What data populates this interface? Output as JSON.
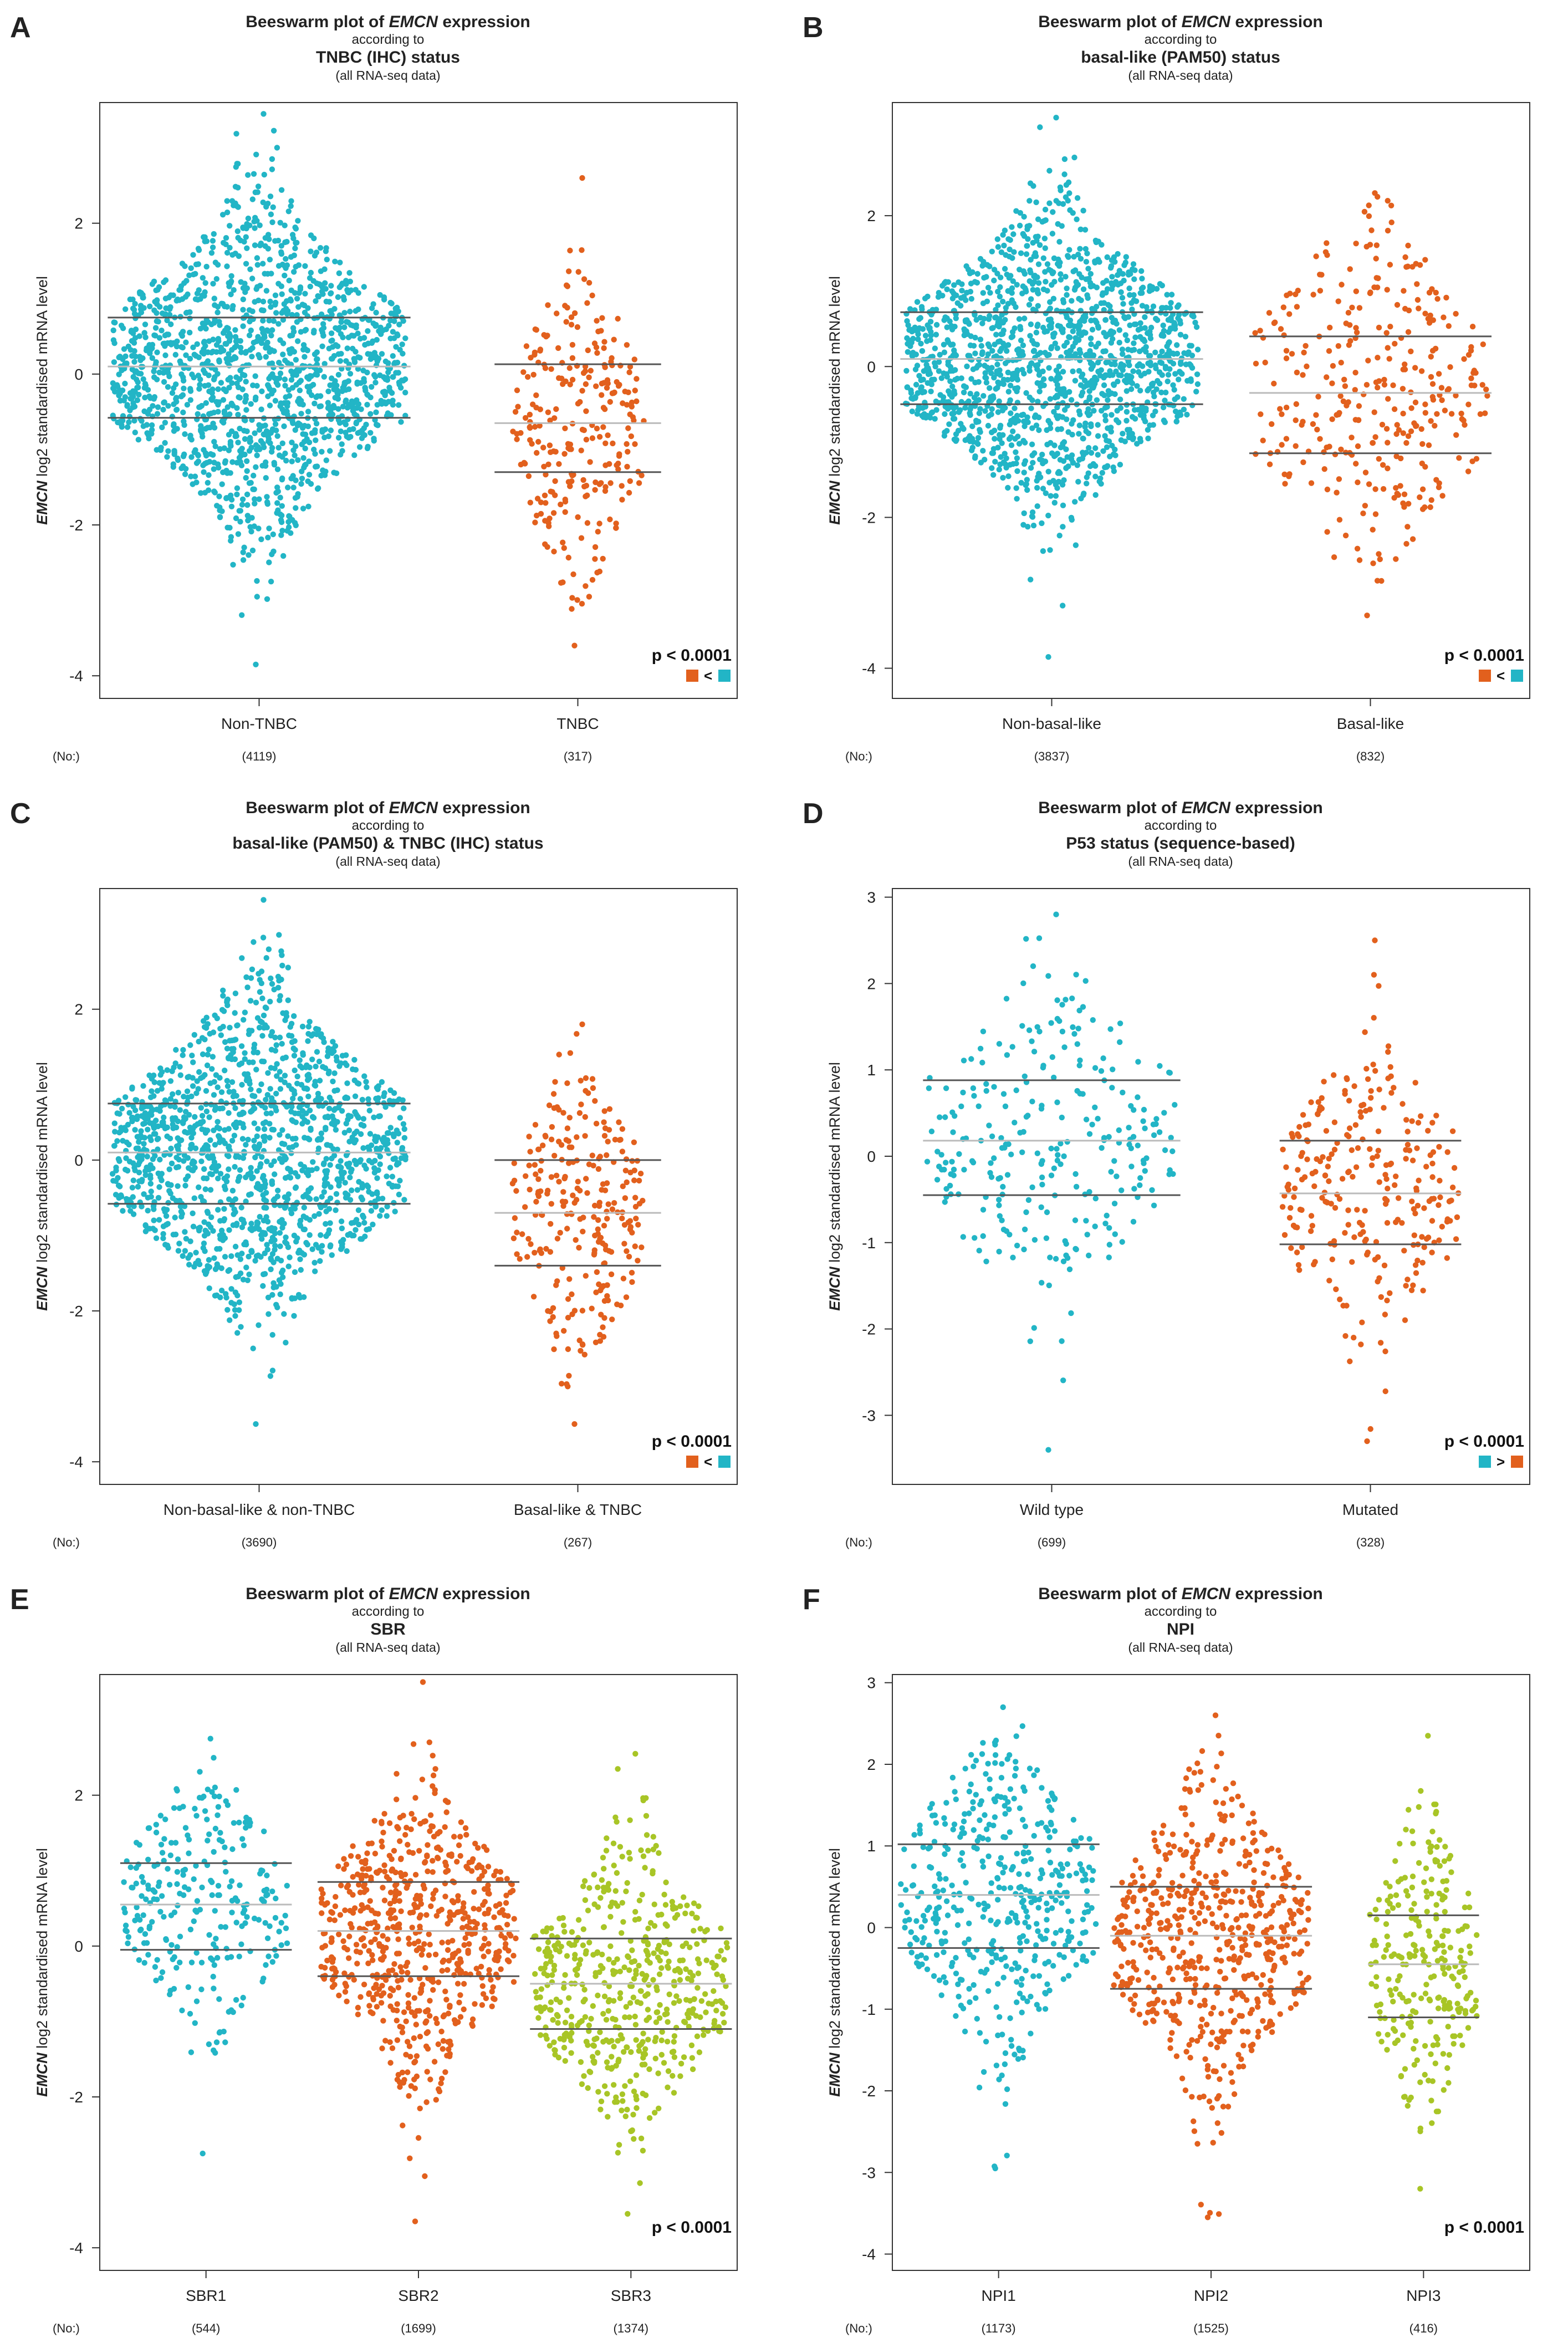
{
  "colors": {
    "cyan": "#22b5c6",
    "orange": "#e2601d",
    "green": "#a8c526",
    "line_dark": "#555555",
    "line_light": "#bbbbbb"
  },
  "no_label": "(No:)",
  "gene": "EMCN",
  "ylabel_rest": "log2 standardised mRNA level",
  "chart_data": [
    {
      "letter": "A",
      "type": "scatter",
      "subtype": "beeswarm",
      "title_pre": "Beeswarm plot of ",
      "title_gene": "EMCN",
      "title_post": " expression",
      "according": "according to",
      "variable": "TNBC (IHC) status",
      "dataset": "(all RNA-seq data)",
      "ylim": [
        -4.3,
        3.6
      ],
      "yticks": [
        -4,
        -2,
        0,
        2
      ],
      "groups": [
        {
          "name": "Non-TNBC",
          "n": "(4119)",
          "color": "cyan",
          "min": -3.85,
          "max": 3.45,
          "q1": -0.58,
          "median": 0.1,
          "q3": 0.75,
          "halfwidth": 1.0
        },
        {
          "name": "TNBC",
          "n": "(317)",
          "color": "orange",
          "min": -3.6,
          "max": 2.6,
          "q1": -1.3,
          "median": -0.65,
          "q3": 0.13,
          "halfwidth": 0.45
        }
      ],
      "pvalue": "p < 0.0001",
      "compare": [
        {
          "color": "orange"
        },
        {
          "text": "<"
        },
        {
          "color": "cyan"
        }
      ]
    },
    {
      "letter": "B",
      "type": "scatter",
      "subtype": "beeswarm",
      "title_pre": "Beeswarm plot of ",
      "title_gene": "EMCN",
      "title_post": " expression",
      "according": "according to",
      "variable": "basal-like (PAM50) status",
      "dataset": "(all RNA-seq data)",
      "ylim": [
        -4.4,
        3.5
      ],
      "yticks": [
        -4,
        -2,
        0,
        2
      ],
      "groups": [
        {
          "name": "Non-basal-like",
          "n": "(3837)",
          "color": "cyan",
          "min": -3.85,
          "max": 3.3,
          "q1": -0.5,
          "median": 0.1,
          "q3": 0.72,
          "halfwidth": 1.0
        },
        {
          "name": "Basal-like",
          "n": "(832)",
          "color": "orange",
          "min": -3.3,
          "max": 2.3,
          "q1": -1.15,
          "median": -0.35,
          "q3": 0.4,
          "halfwidth": 0.8
        }
      ],
      "pvalue": "p < 0.0001",
      "compare": [
        {
          "color": "orange"
        },
        {
          "text": "<"
        },
        {
          "color": "cyan"
        }
      ]
    },
    {
      "letter": "C",
      "type": "scatter",
      "subtype": "beeswarm",
      "title_pre": "Beeswarm plot of ",
      "title_gene": "EMCN",
      "title_post": " expression",
      "according": "according to",
      "variable": "basal-like (PAM50) & TNBC (IHC) status",
      "dataset": "(all RNA-seq data)",
      "ylim": [
        -4.3,
        3.6
      ],
      "yticks": [
        -4,
        -2,
        0,
        2
      ],
      "groups": [
        {
          "name": "Non-basal-like & non-TNBC",
          "n": "(3690)",
          "color": "cyan",
          "min": -3.5,
          "max": 3.45,
          "q1": -0.58,
          "median": 0.1,
          "q3": 0.75,
          "halfwidth": 1.0
        },
        {
          "name": "Basal-like & TNBC",
          "n": "(267)",
          "color": "orange",
          "min": -3.5,
          "max": 1.8,
          "q1": -1.4,
          "median": -0.7,
          "q3": 0.0,
          "halfwidth": 0.45
        }
      ],
      "pvalue": "p < 0.0001",
      "compare": [
        {
          "color": "orange"
        },
        {
          "text": "<"
        },
        {
          "color": "cyan"
        }
      ]
    },
    {
      "letter": "D",
      "type": "scatter",
      "subtype": "beeswarm",
      "title_pre": "Beeswarm plot of ",
      "title_gene": "EMCN",
      "title_post": " expression",
      "according": "according to",
      "variable": "P53 status (sequence-based)",
      "dataset": "(all RNA-seq data)",
      "ylim": [
        -3.8,
        3.1
      ],
      "yticks": [
        -3,
        -2,
        -1,
        0,
        1,
        2,
        3
      ],
      "groups": [
        {
          "name": "Wild type",
          "n": "(699)",
          "color": "cyan",
          "min": -3.4,
          "max": 2.8,
          "q1": -0.45,
          "median": 0.18,
          "q3": 0.88,
          "halfwidth": 0.85
        },
        {
          "name": "Mutated",
          "n": "(328)",
          "color": "orange",
          "min": -3.3,
          "max": 2.5,
          "q1": -1.02,
          "median": -0.43,
          "q3": 0.18,
          "halfwidth": 0.6
        }
      ],
      "pvalue": "p < 0.0001",
      "compare": [
        {
          "color": "cyan"
        },
        {
          "text": ">"
        },
        {
          "color": "orange"
        }
      ]
    },
    {
      "letter": "E",
      "type": "scatter",
      "subtype": "beeswarm",
      "title_pre": "Beeswarm plot of ",
      "title_gene": "EMCN",
      "title_post": " expression",
      "according": "according to",
      "variable": "SBR",
      "dataset": "(all RNA-seq data)",
      "ylim": [
        -4.3,
        3.6
      ],
      "yticks": [
        -4,
        -2,
        0,
        2
      ],
      "groups": [
        {
          "name": "SBR1",
          "n": "(544)",
          "color": "cyan",
          "min": -2.75,
          "max": 2.75,
          "q1": -0.05,
          "median": 0.55,
          "q3": 1.1,
          "halfwidth": 0.85
        },
        {
          "name": "SBR2",
          "n": "(1699)",
          "color": "orange",
          "min": -3.65,
          "max": 3.5,
          "q1": -0.4,
          "median": 0.2,
          "q3": 0.85,
          "halfwidth": 1.0
        },
        {
          "name": "SBR3",
          "n": "(1374)",
          "color": "green",
          "min": -3.55,
          "max": 2.55,
          "q1": -1.1,
          "median": -0.5,
          "q3": 0.1,
          "halfwidth": 1.0
        }
      ],
      "pvalue": "p < 0.0001",
      "compare": []
    },
    {
      "letter": "F",
      "type": "scatter",
      "subtype": "beeswarm",
      "title_pre": "Beeswarm plot of ",
      "title_gene": "EMCN",
      "title_post": " expression",
      "according": "according to",
      "variable": "NPI",
      "dataset": "(all RNA-seq data)",
      "ylim": [
        -4.2,
        3.1
      ],
      "yticks": [
        -4,
        -3,
        -2,
        -1,
        0,
        1,
        2,
        3
      ],
      "groups": [
        {
          "name": "NPI1",
          "n": "(1173)",
          "color": "cyan",
          "min": -2.95,
          "max": 2.7,
          "q1": -0.25,
          "median": 0.4,
          "q3": 1.02,
          "halfwidth": 1.0
        },
        {
          "name": "NPI2",
          "n": "(1525)",
          "color": "orange",
          "min": -3.55,
          "max": 2.6,
          "q1": -0.75,
          "median": -0.1,
          "q3": 0.5,
          "halfwidth": 1.0
        },
        {
          "name": "NPI3",
          "n": "(416)",
          "color": "green",
          "min": -3.2,
          "max": 2.35,
          "q1": -1.1,
          "median": -0.45,
          "q3": 0.15,
          "halfwidth": 0.55
        }
      ],
      "pvalue": "p < 0.0001",
      "compare": []
    }
  ]
}
